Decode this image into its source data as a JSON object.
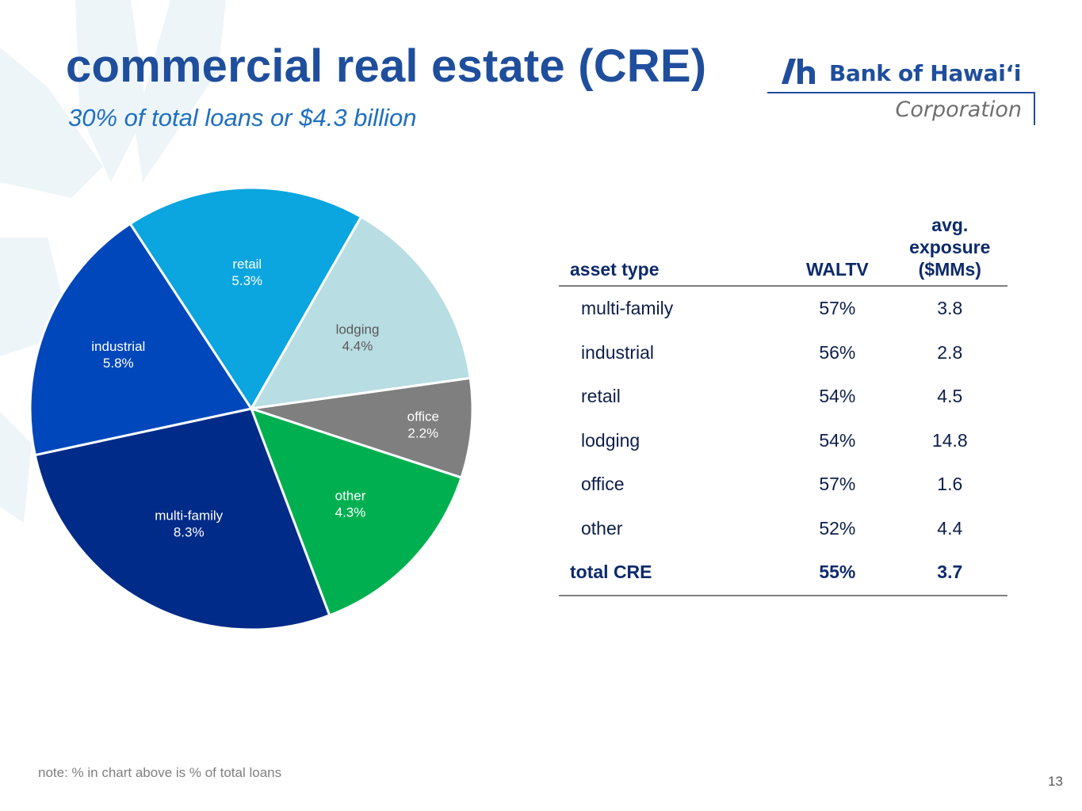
{
  "title": "commercial real estate (CRE)",
  "subtitle": "30% of total loans or $4.3 billion",
  "logo": {
    "brand": "Bank of Hawaiʻi",
    "sub": "Corporation"
  },
  "colors": {
    "title": "#1f4e9c",
    "subtitle": "#1f6fc0"
  },
  "chart_data": {
    "type": "pie",
    "start_angle_deg": -33.2,
    "slices": [
      {
        "label": "retail",
        "value": 5.3,
        "display": "5.3%",
        "color": "#0ba5e0",
        "label_color": "#ffffff"
      },
      {
        "label": "lodging",
        "value": 4.4,
        "display": "4.4%",
        "color": "#b8dde2",
        "label_color": "#595959"
      },
      {
        "label": "office",
        "value": 2.2,
        "display": "2.2%",
        "color": "#7f7f7f",
        "label_color": "#ffffff"
      },
      {
        "label": "other",
        "value": 4.3,
        "display": "4.3%",
        "color": "#00b050",
        "label_color": "#ffffff"
      },
      {
        "label": "multi-family",
        "value": 8.3,
        "display": "8.3%",
        "color": "#002b88",
        "label_color": "#ffffff"
      },
      {
        "label": "industrial",
        "value": 5.8,
        "display": "5.8%",
        "color": "#0047bb",
        "label_color": "#ffffff"
      }
    ]
  },
  "table": {
    "headers": {
      "asset_type": "asset type",
      "waltv": "WALTV",
      "exposure": "avg. exposure ($MMs)"
    },
    "rows": [
      {
        "asset_type": "multi-family",
        "waltv": "57%",
        "exposure": "3.8"
      },
      {
        "asset_type": "industrial",
        "waltv": "56%",
        "exposure": "2.8"
      },
      {
        "asset_type": "retail",
        "waltv": "54%",
        "exposure": "4.5"
      },
      {
        "asset_type": "lodging",
        "waltv": "54%",
        "exposure": "14.8"
      },
      {
        "asset_type": "office",
        "waltv": "57%",
        "exposure": "1.6"
      },
      {
        "asset_type": "other",
        "waltv": "52%",
        "exposure": "4.4"
      }
    ],
    "total": {
      "asset_type": "total CRE",
      "waltv": "55%",
      "exposure": "3.7"
    }
  },
  "note": "note: % in chart above is % of total loans",
  "page_number": "13"
}
